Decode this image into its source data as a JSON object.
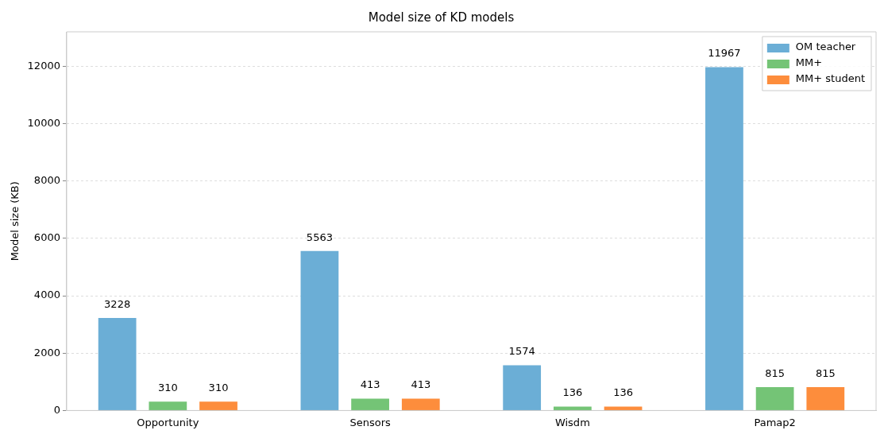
{
  "chart_data": {
    "type": "bar",
    "title": "Model size of KD models",
    "ylabel": "Model size (KB)",
    "categories": [
      "Opportunity",
      "Sensors",
      "Wisdm",
      "Pamap2"
    ],
    "series": [
      {
        "name": "OM teacher",
        "color": "#6baed6",
        "values": [
          3228,
          5563,
          1574,
          11967
        ]
      },
      {
        "name": "MM+",
        "color": "#74c476",
        "values": [
          310,
          413,
          136,
          815
        ]
      },
      {
        "name": "MM+ student",
        "color": "#fd8d3c",
        "values": [
          310,
          413,
          136,
          815
        ]
      }
    ],
    "ylim": [
      0,
      13200
    ],
    "yticks": [
      0,
      2000,
      4000,
      6000,
      8000,
      10000,
      12000
    ],
    "grid": "y",
    "legend": "top right",
    "data_labels": true
  }
}
